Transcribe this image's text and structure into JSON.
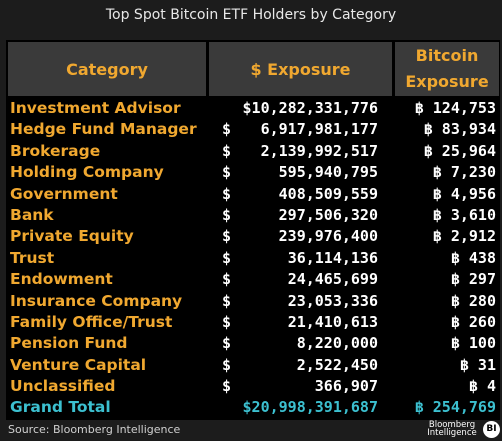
{
  "title": "Top Spot Bitcoin ETF Holders by Category",
  "headers": {
    "category": "Category",
    "usd_exposure": "$ Exposure",
    "btc_exposure": "Bitcoin Exposure"
  },
  "footer": {
    "source": "Source: Bloomberg Intelligence",
    "logo_text": "Bloomberg Intelligence",
    "badge": "BI"
  },
  "colors": {
    "category_text": "#f0a830",
    "header_bg": "#3a3a3a",
    "value_text": "#ffffff",
    "total_text": "#3cc0d0",
    "panel_bg": "#000000"
  },
  "chart_data": {
    "type": "table",
    "title": "Top Spot Bitcoin ETF Holders by Category",
    "columns": [
      "Category",
      "$ Exposure",
      "Bitcoin Exposure"
    ],
    "rows": [
      {
        "category": "Investment Advisor",
        "usd": "$10,282,331,776",
        "btc": "฿ 124,753"
      },
      {
        "category": "Hedge Fund Manager",
        "usd": "$ 6,917,981,177",
        "btc": "฿ 83,934"
      },
      {
        "category": "Brokerage",
        "usd": "$ 2,139,992,517",
        "btc": "฿ 25,964"
      },
      {
        "category": "Holding Company",
        "usd": "$ 595,940,795",
        "btc": "฿ 7,230"
      },
      {
        "category": "Government",
        "usd": "$ 408,509,559",
        "btc": "฿ 4,956"
      },
      {
        "category": "Bank",
        "usd": "$ 297,506,320",
        "btc": "฿ 3,610"
      },
      {
        "category": "Private Equity",
        "usd": "$ 239,976,400",
        "btc": "฿ 2,912"
      },
      {
        "category": "Trust",
        "usd": "$ 36,114,136",
        "btc": "฿ 438"
      },
      {
        "category": "Endowment",
        "usd": "$ 24,465,699",
        "btc": "฿ 297"
      },
      {
        "category": "Insurance Company",
        "usd": "$ 23,053,336",
        "btc": "฿ 280"
      },
      {
        "category": "Family Office/Trust",
        "usd": "$ 21,410,613",
        "btc": "฿ 260"
      },
      {
        "category": "Pension Fund",
        "usd": "$ 8,220,000",
        "btc": "฿ 100"
      },
      {
        "category": "Venture Capital",
        "usd": "$ 2,522,450",
        "btc": "฿ 31"
      },
      {
        "category": "Unclassified",
        "usd": "$ 366,907",
        "btc": "฿ 4"
      }
    ],
    "total": {
      "category": "Grand Total",
      "usd": "$20,998,391,687",
      "btc": "฿ 254,769"
    }
  }
}
